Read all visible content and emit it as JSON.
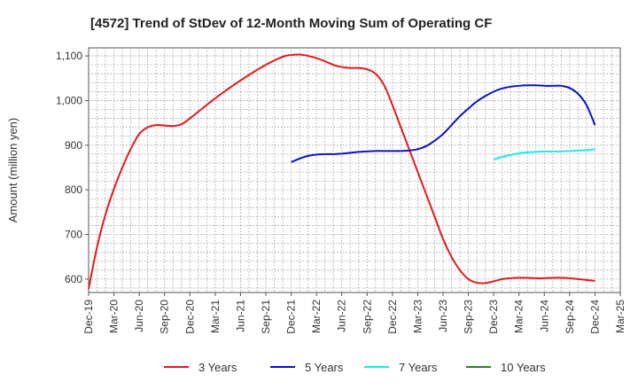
{
  "chart_data": {
    "type": "line",
    "title": "[4572]  Trend of StDev of 12-Month Moving Sum of Operating CF",
    "xlabel": "",
    "ylabel": "Amount (million yen)",
    "ylim": [
      570,
      1118
    ],
    "yticks": [
      600,
      700,
      800,
      900,
      "1,000",
      "1,100"
    ],
    "ytick_values": [
      600,
      700,
      800,
      900,
      1000,
      1100
    ],
    "xticks": [
      "Dec-19",
      "Mar-20",
      "Jun-20",
      "Sep-20",
      "Dec-20",
      "Mar-21",
      "Jun-21",
      "Sep-21",
      "Dec-21",
      "Mar-22",
      "Jun-22",
      "Sep-22",
      "Dec-22",
      "Mar-23",
      "Jun-23",
      "Sep-23",
      "Dec-23",
      "Mar-24",
      "Jun-24",
      "Sep-24",
      "Dec-24",
      "Mar-25"
    ],
    "grid": true,
    "legend_position": "bottom",
    "series": [
      {
        "name": "3 Years",
        "color": "#e41a1c",
        "x": [
          "Dec-19",
          "Jan-20",
          "Feb-20",
          "Mar-20",
          "Apr-20",
          "May-20",
          "Jun-20",
          "Jul-20",
          "Aug-20",
          "Sep-20",
          "Oct-20",
          "Nov-20",
          "Dec-20",
          "Mar-21",
          "Jun-21",
          "Sep-21",
          "Nov-21",
          "Dec-21",
          "Jan-22",
          "Feb-22",
          "Mar-22",
          "Apr-22",
          "May-22",
          "Jun-22",
          "Jul-22",
          "Aug-22",
          "Sep-22",
          "Oct-22",
          "Nov-22",
          "Dec-22",
          "Jan-23",
          "Feb-23",
          "Mar-23",
          "Apr-23",
          "May-23",
          "Jun-23",
          "Jul-23",
          "Aug-23",
          "Sep-23",
          "Oct-23",
          "Nov-23",
          "Dec-23",
          "Jan-24",
          "Feb-24",
          "Mar-24",
          "Apr-24",
          "May-24",
          "Jun-24",
          "Jul-24",
          "Aug-24",
          "Sep-24",
          "Oct-24",
          "Nov-24",
          "Dec-24"
        ],
        "values": [
          578,
          672,
          745,
          802,
          850,
          892,
          925,
          940,
          945,
          944,
          943,
          947,
          960,
          1005,
          1045,
          1080,
          1098,
          1102,
          1103,
          1100,
          1095,
          1088,
          1080,
          1075,
          1073,
          1073,
          1070,
          1060,
          1035,
          990,
          940,
          890,
          840,
          790,
          740,
          690,
          650,
          620,
          600,
          592,
          591,
          595,
          600,
          602,
          603,
          603,
          602,
          602,
          603,
          603,
          602,
          600,
          598,
          596
        ],
        "x_index": [
          0,
          1,
          2,
          3,
          4,
          5,
          6,
          7,
          8,
          9,
          10,
          11,
          12,
          15,
          18,
          21,
          23,
          24,
          25,
          26,
          27,
          28,
          29,
          30,
          31,
          32,
          33,
          34,
          35,
          36,
          37,
          38,
          39,
          40,
          41,
          42,
          43,
          44,
          45,
          46,
          47,
          48,
          49,
          50,
          51,
          52,
          53,
          54,
          55,
          56,
          57,
          58,
          59,
          60
        ]
      },
      {
        "name": "5 Years",
        "color": "#0a12c8",
        "x_index": [
          24,
          25,
          26,
          27,
          28,
          29,
          30,
          31,
          32,
          33,
          34,
          35,
          36,
          37,
          38,
          39,
          40,
          41,
          42,
          43,
          44,
          45,
          46,
          47,
          48,
          49,
          50,
          51,
          52,
          53,
          54,
          55,
          56,
          57,
          58,
          59,
          60
        ],
        "values": [
          862,
          870,
          876,
          879,
          880,
          880,
          881,
          883,
          885,
          886,
          887,
          887,
          887,
          887,
          888,
          891,
          898,
          910,
          925,
          945,
          965,
          982,
          998,
          1010,
          1020,
          1027,
          1031,
          1033,
          1034,
          1034,
          1033,
          1033,
          1033,
          1028,
          1015,
          990,
          945
        ]
      },
      {
        "name": "7 Years",
        "color": "#1de9f0",
        "x_index": [
          48,
          49,
          50,
          51,
          52,
          53,
          54,
          55,
          56,
          57,
          58,
          59,
          60
        ],
        "values": [
          868,
          874,
          878,
          882,
          884,
          885,
          886,
          886,
          886,
          887,
          888,
          889,
          891
        ]
      },
      {
        "name": "10 Years",
        "color": "#1a8a1a",
        "x_index": [],
        "values": []
      }
    ]
  }
}
